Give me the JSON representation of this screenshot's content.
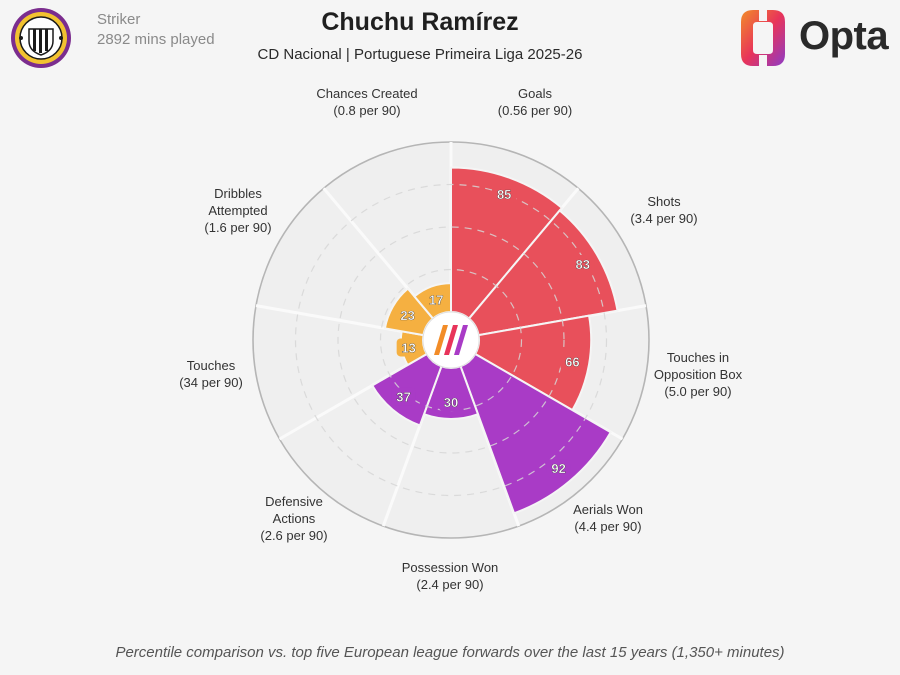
{
  "header": {
    "player_name": "Chuchu Ramírez",
    "position": "Striker",
    "minutes": "2892 mins played",
    "subtitle": "CD Nacional | Portuguese Primeira Liga 2025-26",
    "brand": "Opta"
  },
  "colors": {
    "attacking": "#e8505b",
    "possession": "#f5b041",
    "defending": "#a93bc6",
    "background": "#f5f5f5",
    "grid": "#d0d0d0"
  },
  "chart_data": {
    "type": "polar-bar",
    "scale": [
      0,
      100
    ],
    "metrics": [
      {
        "name": "Goals",
        "label": [
          "Goals",
          "(0.56 per 90)"
        ],
        "percentile": 85,
        "group": "attacking"
      },
      {
        "name": "Shots",
        "label": [
          "Shots",
          "(3.4 per 90)"
        ],
        "percentile": 83,
        "group": "attacking"
      },
      {
        "name": "Touches in Opposition Box",
        "label": [
          "Touches in",
          "Opposition Box",
          "(5.0 per 90)"
        ],
        "percentile": 66,
        "group": "attacking"
      },
      {
        "name": "Aerials Won",
        "label": [
          "Aerials Won",
          "(4.4 per 90)"
        ],
        "percentile": 92,
        "group": "defending"
      },
      {
        "name": "Possession Won",
        "label": [
          "Possession Won",
          "(2.4 per 90)"
        ],
        "percentile": 30,
        "group": "defending"
      },
      {
        "name": "Defensive Actions",
        "label": [
          "Defensive",
          "Actions",
          "(2.6 per 90)"
        ],
        "percentile": 37,
        "group": "defending"
      },
      {
        "name": "Touches",
        "label": [
          "Touches",
          "(34 per 90)"
        ],
        "percentile": 13,
        "group": "possession"
      },
      {
        "name": "Dribbles Attempted",
        "label": [
          "Dribbles",
          "Attempted",
          "(1.6 per 90)"
        ],
        "percentile": 23,
        "group": "possession"
      },
      {
        "name": "Chances Created",
        "label": [
          "Chances Created",
          "(0.8 per 90)"
        ],
        "percentile": 17,
        "group": "possession"
      }
    ]
  },
  "footnote": "Percentile comparison vs. top five European league forwards over the last 15 years (1,350+ minutes)"
}
